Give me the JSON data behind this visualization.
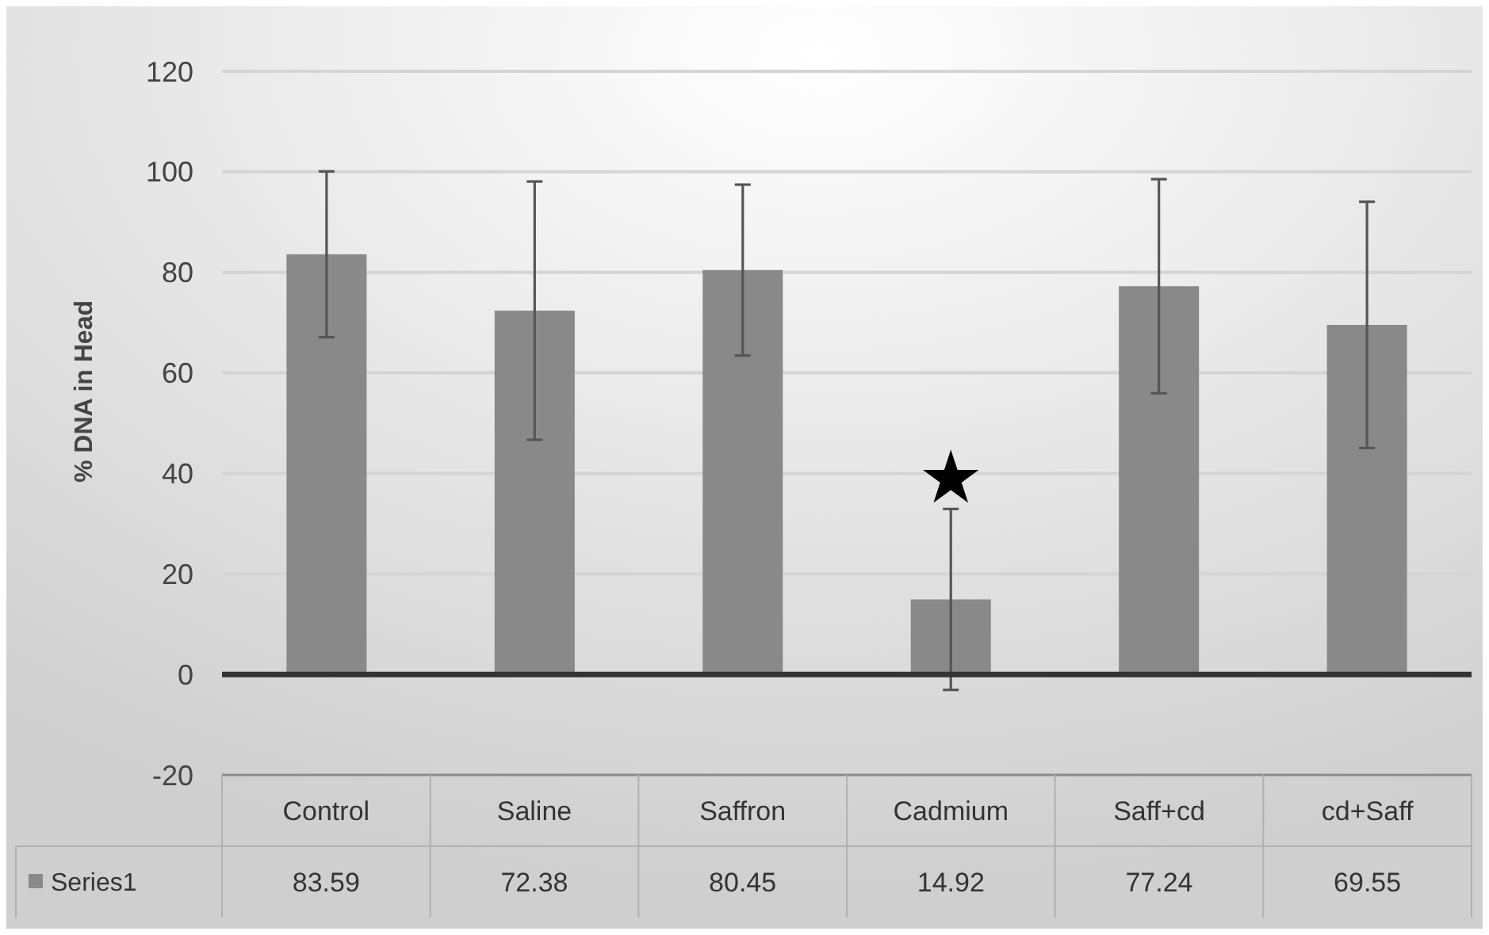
{
  "chart_data": {
    "type": "bar",
    "ylabel": "% DNA in Head",
    "categories": [
      "Control",
      "Saline",
      "Saffron",
      "Cadmium",
      "Saff+cd",
      "cd+Saff"
    ],
    "series": [
      {
        "name": "Series1",
        "color": "#898989",
        "values": [
          83.59,
          72.38,
          80.45,
          14.92,
          77.24,
          69.55
        ],
        "errors": [
          16.5,
          25.7,
          17,
          18,
          21.3,
          24.5
        ]
      }
    ],
    "ylim": [
      -20,
      120
    ],
    "yticks": [
      -20,
      0,
      20,
      40,
      60,
      80,
      100,
      120
    ],
    "grid": "y",
    "legend": "bottom left",
    "data_labels": true,
    "annotations": [
      "★"
    ]
  }
}
